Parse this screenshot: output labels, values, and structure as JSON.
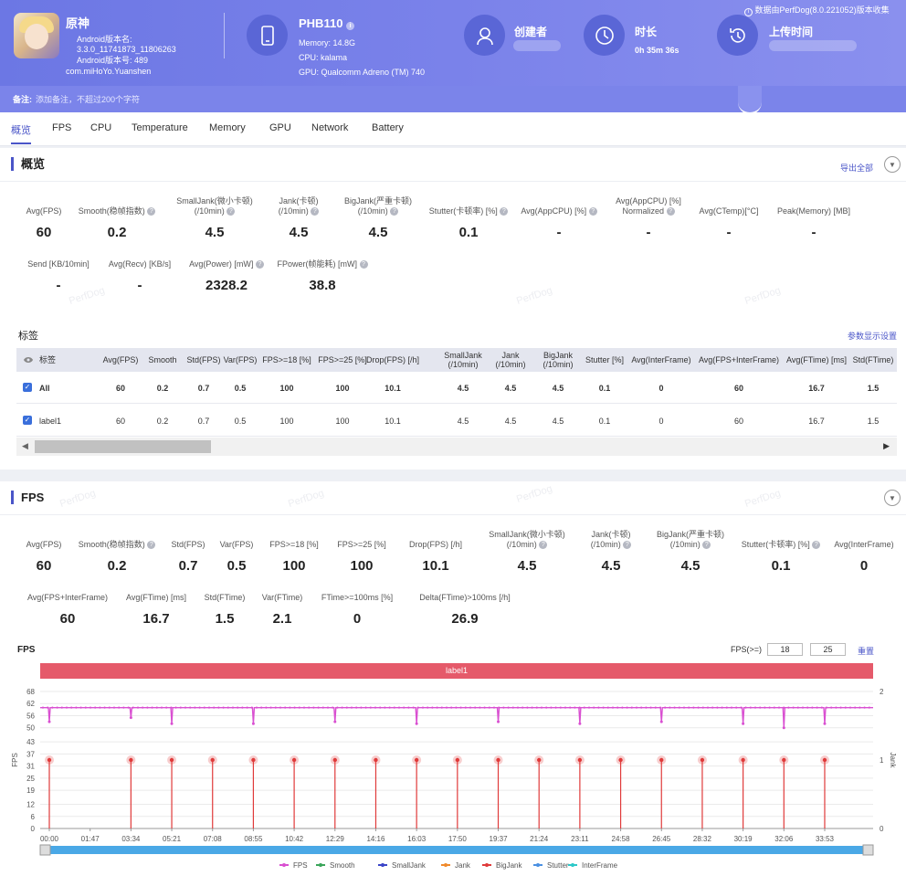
{
  "header": {
    "app_name": "原神",
    "android_version": "Android版本名: 3.3.0_11741873_11806263",
    "android_code": "Android版本号: 489",
    "package": "com.miHoYo.Yuanshen",
    "device_name": "PHB110",
    "memory": "Memory: 14.8G",
    "cpu": "CPU: kalama",
    "gpu": "GPU: Qualcomm Adreno (TM) 740",
    "creator_label": "创建者",
    "duration_label": "时长",
    "duration_value": "0h 35m 36s",
    "upload_label": "上传时间",
    "source_note": "数据由PerfDog(8.0.221052)版本收集"
  },
  "note": {
    "label": "备注:",
    "placeholder": "添加备注，不超过200个字符"
  },
  "tabs": [
    "概览",
    "FPS",
    "CPU",
    "Temperature",
    "Memory",
    "GPU",
    "Network",
    "Battery"
  ],
  "overview": {
    "title": "概览",
    "export": "导出全部",
    "metrics_row1": [
      {
        "label": "Avg(FPS)",
        "value": "60"
      },
      {
        "label": "Smooth(稳帧指数)",
        "value": "0.2"
      },
      {
        "label": "SmallJank(微小卡顿)\n(/10min)",
        "value": "4.5"
      },
      {
        "label": "Jank(卡顿)\n(/10min)",
        "value": "4.5"
      },
      {
        "label": "BigJank(严重卡顿)\n(/10min)",
        "value": "4.5"
      },
      {
        "label": "Stutter(卡顿率) [%]",
        "value": "0.1"
      },
      {
        "label": "Avg(AppCPU) [%]",
        "value": "-"
      },
      {
        "label": "Avg(AppCPU) [%]\nNormalized",
        "value": "-"
      },
      {
        "label": "Avg(CTemp)[°C]",
        "value": "-"
      },
      {
        "label": "Peak(Memory) [MB]",
        "value": "-"
      }
    ],
    "metrics_row2": [
      {
        "label": "Send [KB/10min]",
        "value": "-"
      },
      {
        "label": "Avg(Recv) [KB/s]",
        "value": "-"
      },
      {
        "label": "Avg(Power) [mW]",
        "value": "2328.2"
      },
      {
        "label": "FPower(帧能耗) [mW]",
        "value": "38.8"
      }
    ],
    "tags_title": "标签",
    "display_settings": "参数显示设置",
    "table": {
      "headers": [
        "标签",
        "Avg(FPS)",
        "Smooth",
        "Std(FPS)",
        "Var(FPS)",
        "FPS>=18 [%]",
        "FPS>=25 [%]",
        "Drop(FPS) [/h]",
        "SmallJank\n(/10min)",
        "Jank\n(/10min)",
        "BigJank\n(/10min)",
        "Stutter [%]",
        "Avg(InterFrame)",
        "Avg(FPS+InterFrame)",
        "Avg(FTime) [ms]",
        "Std(FTime)"
      ],
      "rows": [
        [
          "All",
          "60",
          "0.2",
          "0.7",
          "0.5",
          "100",
          "100",
          "10.1",
          "4.5",
          "4.5",
          "4.5",
          "0.1",
          "0",
          "60",
          "16.7",
          "1.5"
        ],
        [
          "label1",
          "60",
          "0.2",
          "0.7",
          "0.5",
          "100",
          "100",
          "10.1",
          "4.5",
          "4.5",
          "4.5",
          "0.1",
          "0",
          "60",
          "16.7",
          "1.5"
        ]
      ]
    }
  },
  "fps_section": {
    "title": "FPS",
    "metrics_row1": [
      {
        "label": "Avg(FPS)",
        "value": "60"
      },
      {
        "label": "Smooth(稳帧指数)",
        "value": "0.2"
      },
      {
        "label": "Std(FPS)",
        "value": "0.7"
      },
      {
        "label": "Var(FPS)",
        "value": "0.5"
      },
      {
        "label": "FPS>=18 [%]",
        "value": "100"
      },
      {
        "label": "FPS>=25 [%]",
        "value": "100"
      },
      {
        "label": "Drop(FPS) [/h]",
        "value": "10.1"
      },
      {
        "label": "SmallJank(微小卡顿)\n(/10min)",
        "value": "4.5"
      },
      {
        "label": "Jank(卡顿)\n(/10min)",
        "value": "4.5"
      },
      {
        "label": "BigJank(严重卡顿)\n(/10min)",
        "value": "4.5"
      },
      {
        "label": "Stutter(卡顿率) [%]",
        "value": "0.1"
      },
      {
        "label": "Avg(InterFrame)",
        "value": "0"
      }
    ],
    "metrics_row2": [
      {
        "label": "Avg(FPS+InterFrame)",
        "value": "60"
      },
      {
        "label": "Avg(FTime) [ms]",
        "value": "16.7"
      },
      {
        "label": "Std(FTime)",
        "value": "1.5"
      },
      {
        "label": "Var(FTime)",
        "value": "2.1"
      },
      {
        "label": "FTime>=100ms [%]",
        "value": "0"
      },
      {
        "label": "Delta(FTime)>100ms [/h]",
        "value": "26.9"
      }
    ],
    "chart_title": "FPS",
    "threshold_label": "FPS(>=)",
    "threshold1": "18",
    "threshold2": "25",
    "reset": "重置",
    "label_band": "label1"
  },
  "chart_data": {
    "type": "line",
    "x_ticks": [
      "00:00",
      "01:47",
      "03:34",
      "05:21",
      "07:08",
      "08:55",
      "10:42",
      "12:29",
      "14:16",
      "16:03",
      "17:50",
      "19:37",
      "21:24",
      "23:11",
      "24:58",
      "26:45",
      "28:32",
      "30:19",
      "32:06",
      "33:53"
    ],
    "y_ticks": [
      0,
      6,
      12,
      19,
      25,
      31,
      37,
      43,
      50,
      56,
      62,
      68
    ],
    "y2_ticks": [
      0,
      1,
      2
    ],
    "ylabel": "FPS",
    "y2label": "Jank",
    "ylim": [
      0,
      68
    ],
    "y2lim": [
      0,
      2
    ],
    "series": [
      {
        "name": "FPS",
        "color": "#d94fd1",
        "baseline": 60,
        "dips": [
          {
            "x": "00:00",
            "y": 53
          },
          {
            "x": "03:34",
            "y": 55
          },
          {
            "x": "05:21",
            "y": 52
          },
          {
            "x": "08:55",
            "y": 52
          },
          {
            "x": "12:29",
            "y": 53
          },
          {
            "x": "16:03",
            "y": 52
          },
          {
            "x": "19:37",
            "y": 53
          },
          {
            "x": "23:11",
            "y": 52
          },
          {
            "x": "26:45",
            "y": 53
          },
          {
            "x": "30:19",
            "y": 52
          },
          {
            "x": "32:06",
            "y": 50
          },
          {
            "x": "33:53",
            "y": 52
          }
        ]
      },
      {
        "name": "Smooth",
        "color": "#3aa55a"
      },
      {
        "name": "SmallJank",
        "color": "#3a45c8"
      },
      {
        "name": "Jank",
        "color": "#f08a2c"
      },
      {
        "name": "BigJank",
        "color": "#e03a3a",
        "spikes_x": [
          "00:00",
          "03:34",
          "05:21",
          "07:08",
          "08:55",
          "10:42",
          "12:29",
          "14:16",
          "16:03",
          "17:50",
          "19:37",
          "21:24",
          "23:11",
          "24:58",
          "26:45",
          "28:32",
          "30:19",
          "32:06",
          "33:53"
        ],
        "spike_value": 1
      },
      {
        "name": "Stutter",
        "color": "#4a90e2"
      },
      {
        "name": "InterFrame",
        "color": "#2cc8c8"
      }
    ]
  }
}
